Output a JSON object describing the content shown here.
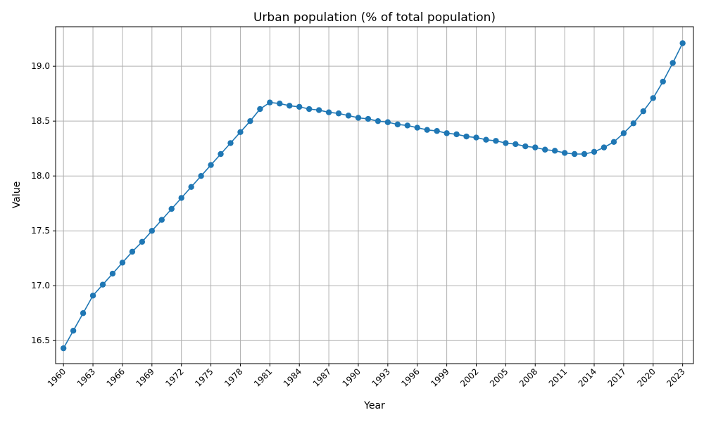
{
  "chart_data": {
    "type": "line",
    "title": "Urban population (% of total population)",
    "xlabel": "Year",
    "ylabel": "Value",
    "x": [
      1960,
      1961,
      1962,
      1963,
      1964,
      1965,
      1966,
      1967,
      1968,
      1969,
      1970,
      1971,
      1972,
      1973,
      1974,
      1975,
      1976,
      1977,
      1978,
      1979,
      1980,
      1981,
      1982,
      1983,
      1984,
      1985,
      1986,
      1987,
      1988,
      1989,
      1990,
      1991,
      1992,
      1993,
      1994,
      1995,
      1996,
      1997,
      1998,
      1999,
      2000,
      2001,
      2002,
      2003,
      2004,
      2005,
      2006,
      2007,
      2008,
      2009,
      2010,
      2011,
      2012,
      2013,
      2014,
      2015,
      2016,
      2017,
      2018,
      2019,
      2020,
      2021,
      2022,
      2023
    ],
    "series": [
      {
        "values": [
          16.43,
          16.59,
          16.75,
          16.91,
          17.01,
          17.11,
          17.21,
          17.31,
          17.4,
          17.5,
          17.6,
          17.7,
          17.8,
          17.9,
          18.0,
          18.1,
          18.2,
          18.3,
          18.4,
          18.5,
          18.61,
          18.67,
          18.66,
          18.64,
          18.63,
          18.61,
          18.6,
          18.58,
          18.57,
          18.55,
          18.53,
          18.52,
          18.5,
          18.49,
          18.47,
          18.46,
          18.44,
          18.42,
          18.41,
          18.39,
          18.38,
          18.36,
          18.35,
          18.33,
          18.32,
          18.3,
          18.29,
          18.27,
          18.26,
          18.24,
          18.23,
          18.21,
          18.2,
          18.2,
          18.22,
          18.26,
          18.31,
          18.39,
          18.48,
          18.59,
          18.71,
          18.86,
          19.03,
          19.21
        ],
        "color": "#1f77b4"
      }
    ],
    "xticks": [
      "1960",
      "1963",
      "1966",
      "1969",
      "1972",
      "1975",
      "1978",
      "1981",
      "1984",
      "1987",
      "1990",
      "1993",
      "1996",
      "1999",
      "2002",
      "2005",
      "2008",
      "2011",
      "2014",
      "2017",
      "2020",
      "2023"
    ],
    "yticks": [
      "16.5",
      "17.0",
      "17.5",
      "18.0",
      "18.5",
      "19.0"
    ],
    "xlim": [
      1959.2,
      2024.1
    ],
    "ylim": [
      16.29,
      19.36
    ],
    "grid": true,
    "marker": "circle"
  }
}
